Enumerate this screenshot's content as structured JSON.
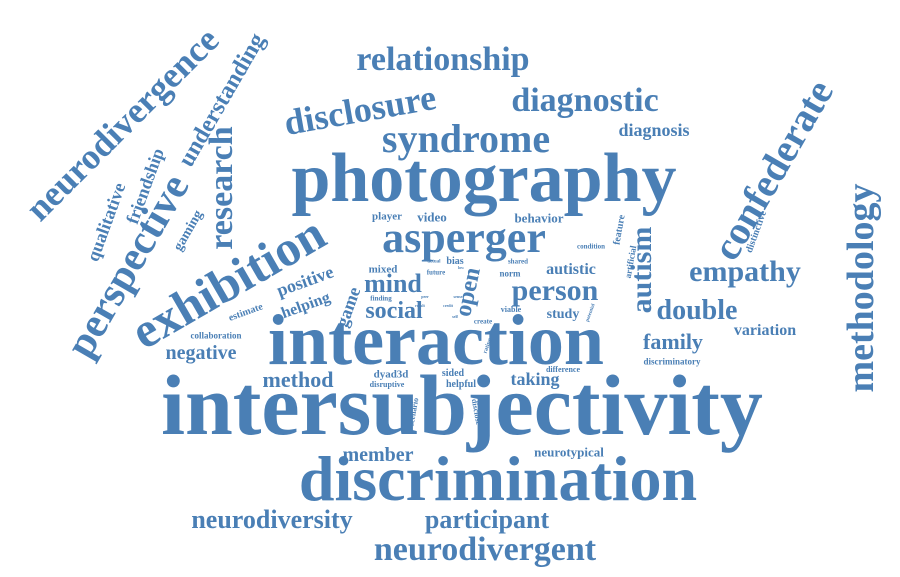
{
  "colors": {
    "word": "#4a7fb5",
    "background": "#ffffff"
  },
  "words": [
    "intersubjectivity",
    "interaction",
    "photography",
    "discrimination",
    "exhibition",
    "asperger",
    "perspective",
    "neurodivergence",
    "confederate",
    "methodology",
    "syndrome",
    "disclosure",
    "relationship",
    "diagnostic",
    "research",
    "understanding",
    "neurodivergent",
    "neurodiversity",
    "participant",
    "person",
    "empathy",
    "autism",
    "double",
    "mind",
    "social",
    "open",
    "family",
    "method",
    "member",
    "negative",
    "positive",
    "diagnosis",
    "friendship",
    "qualitative",
    "autistic",
    "taking",
    "game",
    "variation",
    "helping",
    "gaming",
    "study",
    "behavior",
    "video",
    "player",
    "neurotypical",
    "dyad3d",
    "sided",
    "helpful",
    "mixed",
    "bias",
    "norm",
    "estimate",
    "collaboration",
    "discriminatory",
    "disruptive",
    "scenario",
    "disclose",
    "difference",
    "distinctive",
    "feature",
    "artificial",
    "condition",
    "future",
    "finding",
    "viable",
    "create",
    "shared",
    "actual",
    "potential",
    "rating",
    "low",
    "result",
    "peer",
    "credit",
    "sense",
    "self"
  ]
}
